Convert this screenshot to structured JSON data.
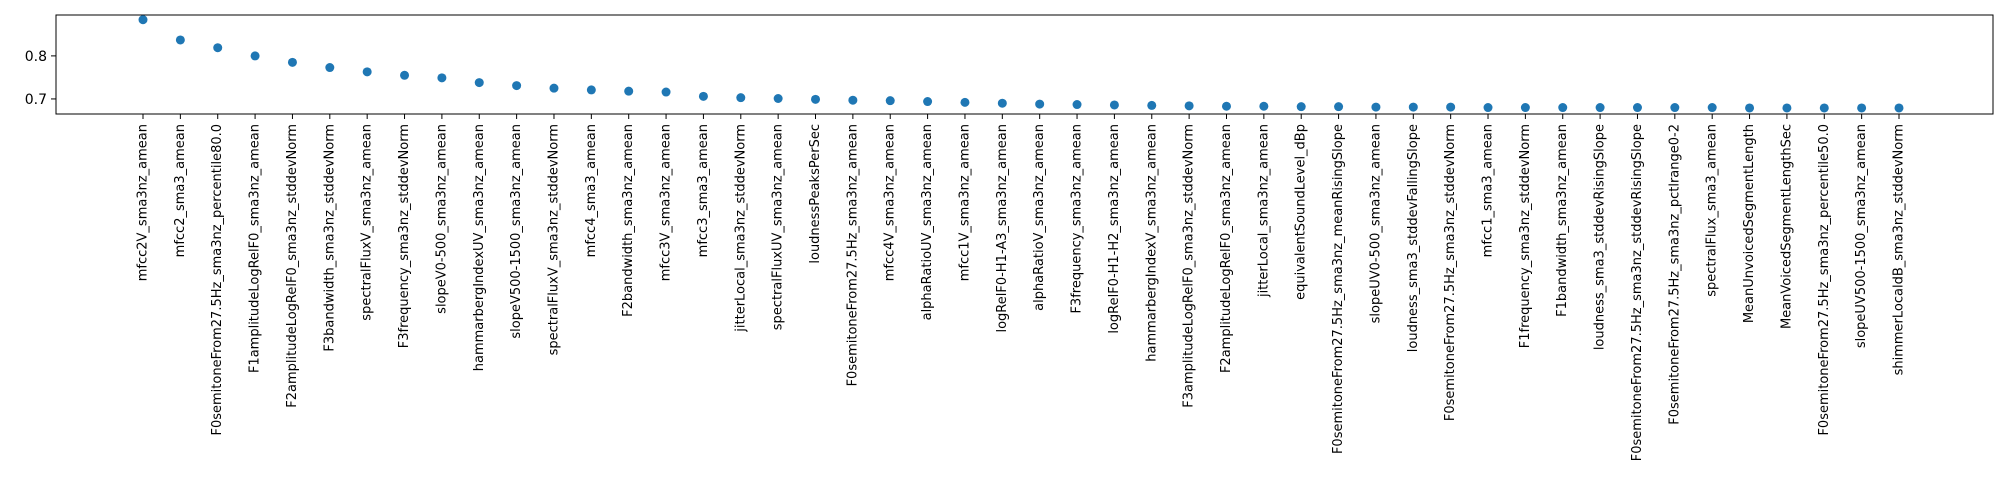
{
  "chart_data": {
    "type": "scatter",
    "title": "",
    "xlabel": "",
    "ylabel": "",
    "ylim": [
      0.665,
      0.895
    ],
    "yticks": [
      0.7,
      0.8
    ],
    "ytick_labels": [
      "0.7",
      "0.8"
    ],
    "grid": false,
    "legend": "none",
    "marker_color": "#1f77b4",
    "categories": [
      "mfcc2V_sma3nz_amean",
      "mfcc2_sma3_amean",
      "F0semitoneFrom27.5Hz_sma3nz_percentile80.0",
      "F1amplitudeLogRelF0_sma3nz_amean",
      "F2amplitudeLogRelF0_sma3nz_stddevNorm",
      "F3bandwidth_sma3nz_stddevNorm",
      "spectralFluxV_sma3nz_amean",
      "F3frequency_sma3nz_stddevNorm",
      "slopeV0-500_sma3nz_amean",
      "hammarbergIndexUV_sma3nz_amean",
      "slopeV500-1500_sma3nz_amean",
      "spectralFluxV_sma3nz_stddevNorm",
      "mfcc4_sma3_amean",
      "F2bandwidth_sma3nz_amean",
      "mfcc3V_sma3nz_amean",
      "mfcc3_sma3_amean",
      "jitterLocal_sma3nz_stddevNorm",
      "spectralFluxUV_sma3nz_amean",
      "loudnessPeaksPerSec",
      "F0semitoneFrom27.5Hz_sma3nz_amean",
      "mfcc4V_sma3nz_amean",
      "alphaRatioUV_sma3nz_amean",
      "mfcc1V_sma3nz_amean",
      "logRelF0-H1-A3_sma3nz_amean",
      "alphaRatioV_sma3nz_amean",
      "F3frequency_sma3nz_amean",
      "logRelF0-H1-H2_sma3nz_amean",
      "hammarbergIndexV_sma3nz_amean",
      "F3amplitudeLogRelF0_sma3nz_stddevNorm",
      "F2amplitudeLogRelF0_sma3nz_amean",
      "jitterLocal_sma3nz_amean",
      "equivalentSoundLevel_dBp",
      "F0semitoneFrom27.5Hz_sma3nz_meanRisingSlope",
      "slopeUV0-500_sma3nz_amean",
      "loudness_sma3_stddevFallingSlope",
      "F0semitoneFrom27.5Hz_sma3nz_stddevNorm",
      "mfcc1_sma3_amean",
      "F1frequency_sma3nz_stddevNorm",
      "F1bandwidth_sma3nz_amean",
      "loudness_sma3_stddevRisingSlope",
      "F0semitoneFrom27.5Hz_sma3nz_stddevRisingSlope",
      "F0semitoneFrom27.5Hz_sma3nz_pctlrange0-2",
      "spectralFlux_sma3_amean",
      "MeanUnvoicedSegmentLength",
      "MeanVoicedSegmentLengthSec",
      "F0semitoneFrom27.5Hz_sma3nz_percentile50.0",
      "slopeUV500-1500_sma3nz_amean",
      "shimmerLocaldB_sma3nz_stddevNorm"
    ],
    "values": [
      0.884,
      0.837,
      0.819,
      0.8,
      0.785,
      0.773,
      0.763,
      0.755,
      0.749,
      0.738,
      0.731,
      0.725,
      0.721,
      0.718,
      0.716,
      0.706,
      0.703,
      0.701,
      0.699,
      0.697,
      0.696,
      0.694,
      0.692,
      0.69,
      0.688,
      0.687,
      0.686,
      0.685,
      0.684,
      0.683,
      0.683,
      0.682,
      0.682,
      0.681,
      0.681,
      0.681,
      0.68,
      0.68,
      0.68,
      0.68,
      0.68,
      0.68,
      0.68,
      0.679,
      0.679,
      0.679,
      0.679,
      0.679
    ]
  }
}
